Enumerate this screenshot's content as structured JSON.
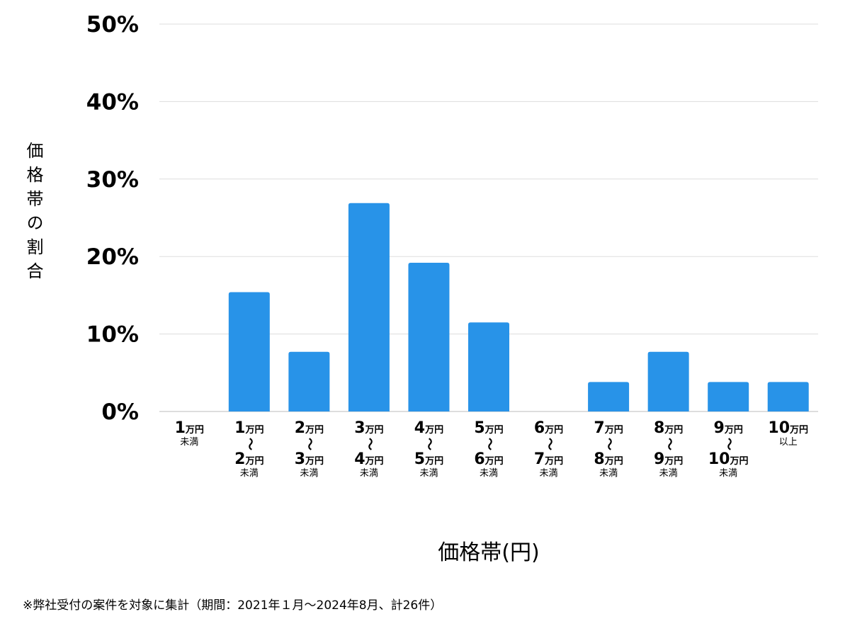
{
  "chart_data": {
    "type": "bar",
    "title": "",
    "ylabel": "価格帯の割合",
    "xlabel": "価格帯(円)",
    "ylim": [
      0,
      50
    ],
    "yticks": [
      "0%",
      "10%",
      "20%",
      "30%",
      "40%",
      "50%"
    ],
    "grid": true,
    "bar_color": "#2893e8",
    "categories": [
      {
        "from": {
          "num": "1",
          "unit": "万円"
        },
        "suffix": "未満"
      },
      {
        "from": {
          "num": "1",
          "unit": "万円"
        },
        "to": {
          "num": "2",
          "unit": "万円"
        },
        "suffix": "未満"
      },
      {
        "from": {
          "num": "2",
          "unit": "万円"
        },
        "to": {
          "num": "3",
          "unit": "万円"
        },
        "suffix": "未満"
      },
      {
        "from": {
          "num": "3",
          "unit": "万円"
        },
        "to": {
          "num": "4",
          "unit": "万円"
        },
        "suffix": "未満"
      },
      {
        "from": {
          "num": "4",
          "unit": "万円"
        },
        "to": {
          "num": "5",
          "unit": "万円"
        },
        "suffix": "未満"
      },
      {
        "from": {
          "num": "5",
          "unit": "万円"
        },
        "to": {
          "num": "6",
          "unit": "万円"
        },
        "suffix": "未満"
      },
      {
        "from": {
          "num": "6",
          "unit": "万円"
        },
        "to": {
          "num": "7",
          "unit": "万円"
        },
        "suffix": "未満"
      },
      {
        "from": {
          "num": "7",
          "unit": "万円"
        },
        "to": {
          "num": "8",
          "unit": "万円"
        },
        "suffix": "未満"
      },
      {
        "from": {
          "num": "8",
          "unit": "万円"
        },
        "to": {
          "num": "9",
          "unit": "万円"
        },
        "suffix": "未満"
      },
      {
        "from": {
          "num": "9",
          "unit": "万円"
        },
        "to": {
          "num": "10",
          "unit": "万円"
        },
        "suffix": "未満"
      },
      {
        "from": {
          "num": "10",
          "unit": "万円"
        },
        "suffix": "以上"
      }
    ],
    "range_mark": "〜",
    "values": [
      0,
      15.4,
      7.7,
      26.9,
      19.2,
      11.5,
      0,
      3.8,
      7.7,
      3.8,
      3.8
    ]
  },
  "footnote": "※弊社受付の案件を対象に集計（期間：2021年１月〜2024年8月、計26件）"
}
